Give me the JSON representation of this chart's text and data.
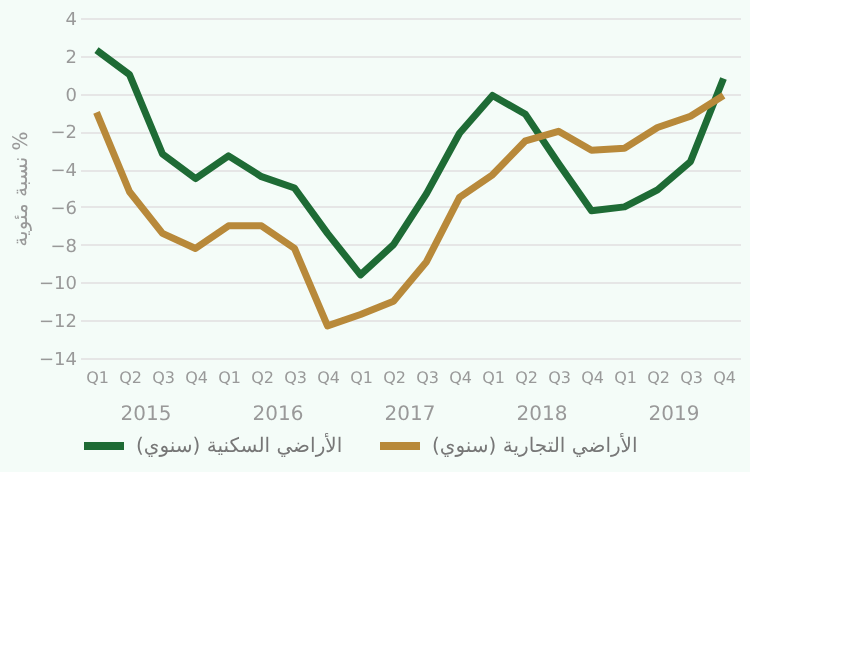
{
  "chart_data": {
    "type": "line",
    "ylabel": "نسبة مئوية %",
    "categories": [
      "Q1",
      "Q2",
      "Q3",
      "Q4",
      "Q1",
      "Q2",
      "Q3",
      "Q4",
      "Q1",
      "Q2",
      "Q3",
      "Q4",
      "Q1",
      "Q2",
      "Q3",
      "Q4",
      "Q1",
      "Q2",
      "Q3",
      "Q4"
    ],
    "annotations": [
      "2015",
      "2016",
      "2017",
      "2018",
      "2019"
    ],
    "series": [
      {
        "name": "الأراضي السكنية (سنوي)",
        "color": "#1e6b35",
        "values": [
          2.3,
          1.0,
          -3.2,
          -4.5,
          -3.3,
          -4.4,
          -5.0,
          -7.4,
          -9.6,
          -8.0,
          -5.3,
          -2.1,
          -0.1,
          -1.1,
          -3.7,
          -6.2,
          -6.0,
          -5.1,
          -3.6,
          0.8
        ]
      },
      {
        "name": "الأراضي التجارية (سنوي)",
        "color": "#b8893a",
        "values": [
          -1.0,
          -5.2,
          -7.4,
          -8.2,
          -7.0,
          -7.0,
          -8.2,
          -12.3,
          -11.7,
          -11.0,
          -8.9,
          -5.5,
          -4.3,
          -2.5,
          -2.0,
          -3.0,
          -2.9,
          -1.8,
          -1.2,
          -0.1
        ]
      }
    ],
    "ylim": [
      -14,
      4
    ],
    "yticks": [
      -14,
      -12,
      -10,
      -8,
      -6,
      -4,
      -2,
      0,
      2,
      4
    ],
    "grid": "y",
    "legend": "bottom",
    "line_style": "solid",
    "marker": "none"
  }
}
